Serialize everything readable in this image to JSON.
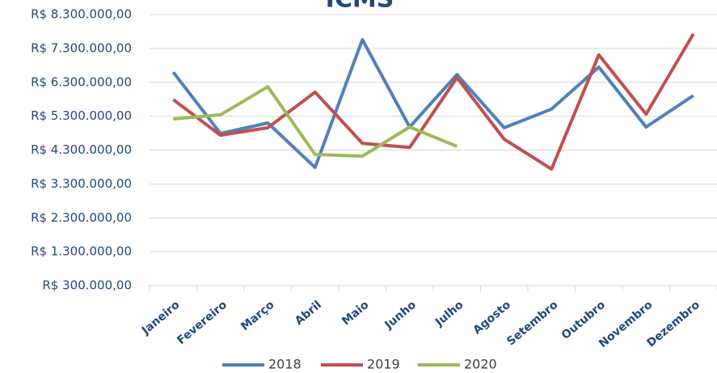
{
  "chart_data": {
    "type": "line",
    "title": "ICMS",
    "categories": [
      "Janeiro",
      "Fevereiro",
      "Março",
      "Abril",
      "Maio",
      "Junho",
      "Julho",
      "Agosto",
      "Setembro",
      "Outubro",
      "Novembro",
      "Dezembro"
    ],
    "series": [
      {
        "name": "2018",
        "color": "#4f81bd",
        "values": [
          6600000,
          4790000,
          5100000,
          3790000,
          7560000,
          4980000,
          6530000,
          4960000,
          5510000,
          6750000,
          4980000,
          5910000
        ]
      },
      {
        "name": "2019",
        "color": "#c0504d",
        "values": [
          5790000,
          4740000,
          4960000,
          6010000,
          4500000,
          4380000,
          6440000,
          4620000,
          3740000,
          7110000,
          5360000,
          7730000
        ]
      },
      {
        "name": "2020",
        "color": "#9bbb59",
        "values": [
          5220000,
          5340000,
          6170000,
          4170000,
          4120000,
          4980000,
          4410000,
          null,
          null,
          null,
          null,
          null
        ]
      }
    ],
    "ylim": [
      300000,
      8300000
    ],
    "yticks": [
      {
        "value": 300000,
        "label": "R$ 300.000,00"
      },
      {
        "value": 1300000,
        "label": "R$ 1.300.000,00"
      },
      {
        "value": 2300000,
        "label": "R$ 2.300.000,00"
      },
      {
        "value": 3300000,
        "label": "R$ 3.300.000,00"
      },
      {
        "value": 4300000,
        "label": "R$ 4.300.000,00"
      },
      {
        "value": 5300000,
        "label": "R$ 5.300.000,00"
      },
      {
        "value": 6300000,
        "label": "R$ 6.300.000,00"
      },
      {
        "value": 7300000,
        "label": "R$ 7.300.000,00"
      },
      {
        "value": 8300000,
        "label": "R$ 8.300.000,00"
      }
    ],
    "grid": true,
    "legend": "bottom"
  }
}
